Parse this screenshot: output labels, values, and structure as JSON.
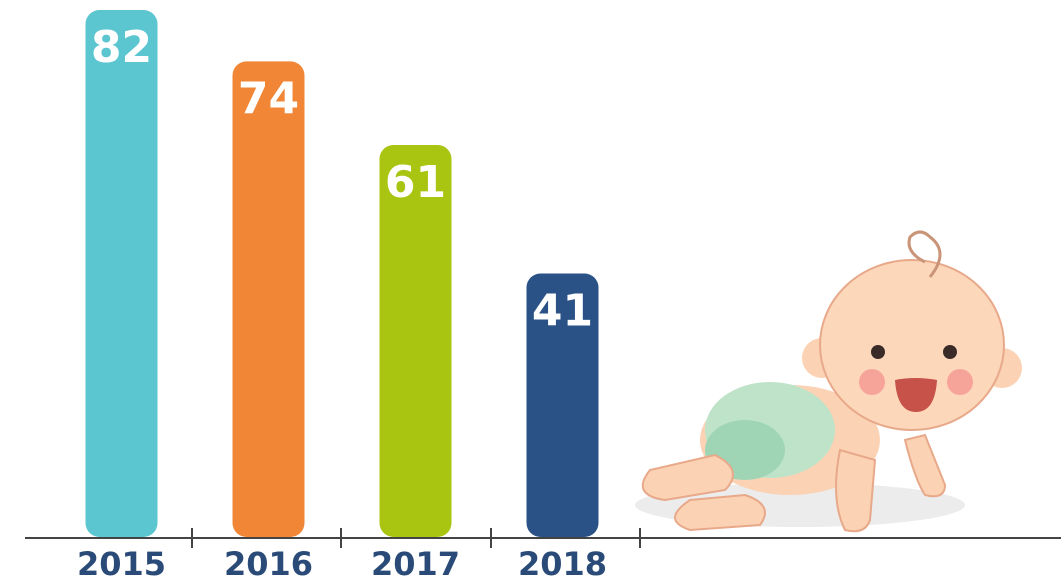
{
  "chart_data": {
    "type": "bar",
    "categories": [
      "2015",
      "2016",
      "2017",
      "2018"
    ],
    "values": [
      82,
      74,
      61,
      41
    ],
    "colors": [
      "#5bc5d0",
      "#f08636",
      "#a9c512",
      "#2a5286"
    ],
    "ylim": [
      0,
      82
    ]
  }
}
